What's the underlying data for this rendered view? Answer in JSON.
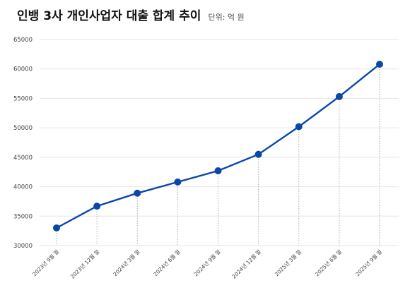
{
  "title": "인뱅 3사 개인사업자 대출 합계 추이",
  "unit": "단위: 억 원",
  "chart_data": {
    "type": "line",
    "title": "인뱅 3사 개인사업자 대출 합계 추이",
    "unit": "단위: 억 원",
    "categories": [
      "2023년 9월 말",
      "2023년 12월 말",
      "2024년 3월 말",
      "2024년 6월 말",
      "2024년 9월 말",
      "2024년 12월 말",
      "2025년 3월 말",
      "2025년 6월 말",
      "2025년 9월 말"
    ],
    "values": [
      33000,
      36700,
      38900,
      40800,
      42700,
      45500,
      50200,
      55300,
      60800
    ],
    "ylim": [
      30000,
      65000
    ],
    "yticks": [
      30000,
      35000,
      40000,
      45000,
      50000,
      55000,
      60000,
      65000
    ],
    "grid": "horizontal",
    "line_color": "#0b47a8",
    "drop_lines": "dotted",
    "drop_line_color": "#aaaaaa",
    "grid_color": "#e6e6e6"
  }
}
